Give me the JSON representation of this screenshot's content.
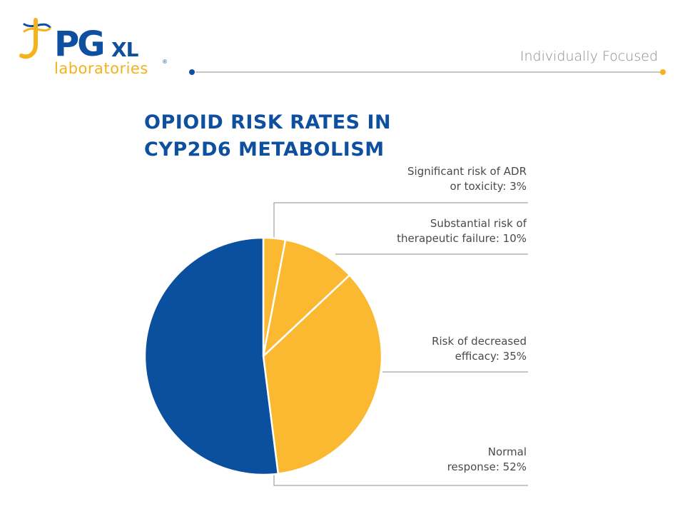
{
  "header": {
    "logo_main": "PG",
    "logo_suffix": "XL",
    "logo_sub": "laboratories",
    "logo_reg": "®",
    "tagline": "Individually Focused"
  },
  "colors": {
    "brand_blue": "#0e4fa0",
    "brand_yellow": "#f5b21a",
    "slice_blue": "#0a509e",
    "slice_yellow": "#fbb931",
    "leader": "#8c8c8c"
  },
  "chart_data": {
    "type": "pie",
    "title_lines": [
      "OPIOID RISK RATES IN",
      "CYP2D6 METABOLISM"
    ],
    "slices": [
      {
        "label_lines": [
          "Significant risk of ADR",
          "or toxicity: 3%"
        ],
        "value": 3,
        "color": "#fbb931"
      },
      {
        "label_lines": [
          "Substantial risk of",
          "therapeutic failure: 10%"
        ],
        "value": 10,
        "color": "#fbb931"
      },
      {
        "label_lines": [
          "Risk of decreased",
          "efficacy: 35%"
        ],
        "value": 35,
        "color": "#fbb931"
      },
      {
        "label_lines": [
          "Normal",
          "response: 52%"
        ],
        "value": 52,
        "color": "#0a509e"
      }
    ],
    "start": "12 o'clock",
    "direction": "clockwise",
    "legend": "none",
    "data_labels": "right of pie with leader lines"
  }
}
